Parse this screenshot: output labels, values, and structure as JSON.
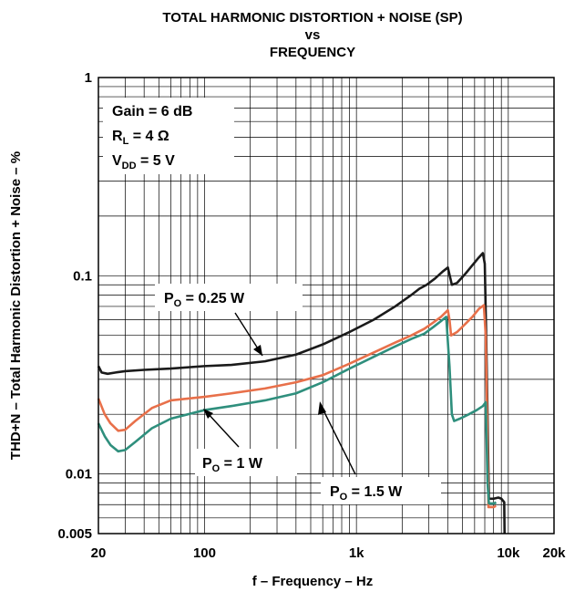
{
  "chart_data": {
    "type": "line",
    "title": [
      "TOTAL HARMONIC DISTORTION + NOISE (SP)",
      "vs",
      "FREQUENCY"
    ],
    "xlabel": "f – Frequency – Hz",
    "ylabel": "THD+N – Total Harmonic Distortion + Noise – %",
    "xscale": "log",
    "yscale": "log",
    "xlim": [
      20,
      20000
    ],
    "ylim": [
      0.005,
      1
    ],
    "grid": true,
    "x_ticks": [
      {
        "value": 20,
        "label": "20"
      },
      {
        "value": 100,
        "label": "100"
      },
      {
        "value": 1000,
        "label": "1k"
      },
      {
        "value": 10000,
        "label": "10k"
      },
      {
        "value": 20000,
        "label": "20k"
      }
    ],
    "y_ticks": [
      {
        "value": 1,
        "label": "1"
      },
      {
        "value": 0.1,
        "label": "0.1"
      },
      {
        "value": 0.01,
        "label": "0.01"
      },
      {
        "value": 0.005,
        "label": "0.005"
      }
    ],
    "conditions": {
      "gain": {
        "main": "Gain = 6 dB"
      },
      "rl": {
        "main": "R",
        "sub": "L",
        "rest": " = 4 Ω"
      },
      "vdd": {
        "main": "V",
        "sub": "DD",
        "rest": " = 5 V"
      }
    },
    "series": [
      {
        "name_main": "P",
        "name_sub": "O",
        "name_rest": " = 0.25 W",
        "color": "#1a1a1a",
        "points": [
          [
            20,
            0.035
          ],
          [
            21,
            0.0325
          ],
          [
            23,
            0.032
          ],
          [
            26,
            0.0325
          ],
          [
            30,
            0.033
          ],
          [
            40,
            0.0335
          ],
          [
            60,
            0.034
          ],
          [
            100,
            0.035
          ],
          [
            150,
            0.0355
          ],
          [
            250,
            0.037
          ],
          [
            400,
            0.04
          ],
          [
            600,
            0.045
          ],
          [
            900,
            0.052
          ],
          [
            1300,
            0.06
          ],
          [
            1800,
            0.07
          ],
          [
            2300,
            0.08
          ],
          [
            2600,
            0.086
          ],
          [
            2900,
            0.09
          ],
          [
            3300,
            0.097
          ],
          [
            3700,
            0.105
          ],
          [
            4000,
            0.11
          ],
          [
            4250,
            0.09
          ],
          [
            4600,
            0.092
          ],
          [
            5200,
            0.102
          ],
          [
            5800,
            0.113
          ],
          [
            6300,
            0.122
          ],
          [
            6800,
            0.13
          ],
          [
            7000,
            0.115
          ],
          [
            7150,
            0.05
          ],
          [
            7300,
            0.02
          ],
          [
            7450,
            0.0075
          ],
          [
            8000,
            0.0075
          ],
          [
            8600,
            0.0076
          ],
          [
            9000,
            0.0075
          ],
          [
            9400,
            0.0072
          ],
          [
            9450,
            0.005
          ]
        ]
      },
      {
        "name_main": "P",
        "name_sub": "O",
        "name_rest": " = 1 W",
        "color": "#e8704a",
        "points": [
          [
            20,
            0.024
          ],
          [
            22,
            0.02
          ],
          [
            24,
            0.018
          ],
          [
            27,
            0.0165
          ],
          [
            30,
            0.0167
          ],
          [
            35,
            0.0185
          ],
          [
            45,
            0.0215
          ],
          [
            60,
            0.0235
          ],
          [
            100,
            0.0245
          ],
          [
            150,
            0.0255
          ],
          [
            250,
            0.027
          ],
          [
            400,
            0.029
          ],
          [
            600,
            0.0315
          ],
          [
            900,
            0.036
          ],
          [
            1300,
            0.041
          ],
          [
            1800,
            0.046
          ],
          [
            2300,
            0.05
          ],
          [
            2800,
            0.054
          ],
          [
            3200,
            0.058
          ],
          [
            3600,
            0.062
          ],
          [
            4000,
            0.067
          ],
          [
            4100,
            0.06
          ],
          [
            4200,
            0.05
          ],
          [
            4600,
            0.052
          ],
          [
            5200,
            0.057
          ],
          [
            5800,
            0.062
          ],
          [
            6400,
            0.068
          ],
          [
            6900,
            0.071
          ],
          [
            7100,
            0.05
          ],
          [
            7250,
            0.02
          ],
          [
            7400,
            0.0068
          ],
          [
            8000,
            0.0068
          ],
          [
            8300,
            0.0069
          ]
        ]
      },
      {
        "name_main": "P",
        "name_sub": "O",
        "name_rest": " = 1.5 W",
        "color": "#2f8f7d",
        "points": [
          [
            20,
            0.018
          ],
          [
            22,
            0.0155
          ],
          [
            24,
            0.014
          ],
          [
            27,
            0.013
          ],
          [
            30,
            0.0132
          ],
          [
            35,
            0.0145
          ],
          [
            45,
            0.017
          ],
          [
            60,
            0.019
          ],
          [
            100,
            0.021
          ],
          [
            150,
            0.022
          ],
          [
            250,
            0.0235
          ],
          [
            400,
            0.0255
          ],
          [
            600,
            0.029
          ],
          [
            900,
            0.034
          ],
          [
            1300,
            0.039
          ],
          [
            1800,
            0.044
          ],
          [
            2300,
            0.048
          ],
          [
            2800,
            0.051
          ],
          [
            3200,
            0.055
          ],
          [
            3600,
            0.059
          ],
          [
            3900,
            0.062
          ],
          [
            4100,
            0.035
          ],
          [
            4250,
            0.02
          ],
          [
            4400,
            0.0185
          ],
          [
            4800,
            0.019
          ],
          [
            5500,
            0.02
          ],
          [
            6200,
            0.021
          ],
          [
            6800,
            0.022
          ],
          [
            7100,
            0.023
          ],
          [
            7200,
            0.015
          ],
          [
            7300,
            0.009
          ],
          [
            7450,
            0.0071
          ],
          [
            8100,
            0.0071
          ],
          [
            8300,
            0.0072
          ]
        ]
      }
    ]
  }
}
